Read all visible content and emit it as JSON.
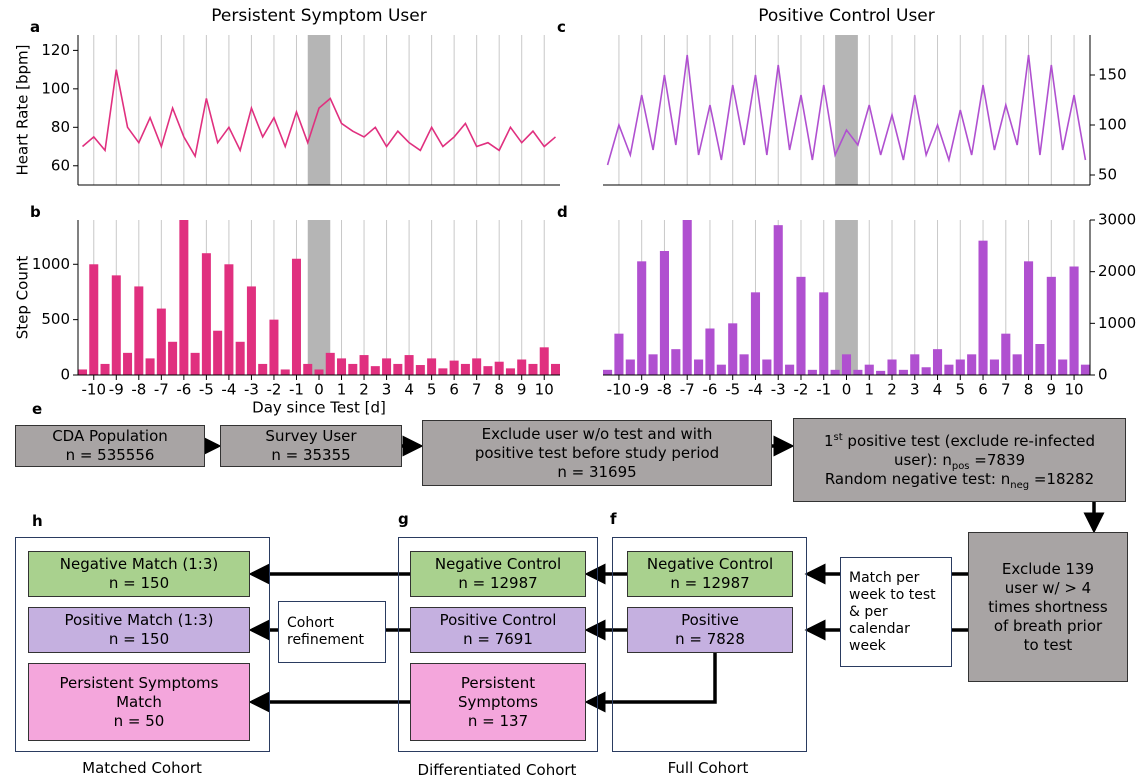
{
  "chart_data": [
    {
      "type": "line",
      "title": "Persistent Symptom User",
      "ylabel": "Heart Rate [bpm]",
      "y_side": "left",
      "show_xtick_labels": false,
      "x": [
        -10.5,
        -10,
        -9.5,
        -9,
        -8.5,
        -8,
        -7.5,
        -7,
        -6.5,
        -6,
        -5.5,
        -5,
        -4.5,
        -4,
        -3.5,
        -3,
        -2.5,
        -2,
        -1.5,
        -1,
        -0.5,
        0,
        0.5,
        1,
        1.5,
        2,
        2.5,
        3,
        3.5,
        4,
        4.5,
        5,
        5.5,
        6,
        6.5,
        7,
        7.5,
        8,
        8.5,
        9,
        9.5,
        10,
        10.5
      ],
      "series": [
        {
          "color": "#e0307f",
          "values": [
            70,
            75,
            68,
            110,
            80,
            72,
            85,
            70,
            90,
            75,
            65,
            95,
            72,
            80,
            68,
            90,
            75,
            85,
            70,
            88,
            72,
            90,
            95,
            82,
            78,
            75,
            80,
            70,
            78,
            72,
            68,
            80,
            70,
            75,
            82,
            70,
            72,
            68,
            80,
            72,
            78,
            70,
            75
          ]
        }
      ],
      "xlim": [
        -10.7,
        10.7
      ],
      "ylim": [
        50,
        128
      ],
      "xticks": [
        -10,
        -9,
        -8,
        -7,
        -6,
        -5,
        -4,
        -3,
        -2,
        -1,
        0,
        1,
        2,
        3,
        4,
        5,
        6,
        7,
        8,
        9,
        10
      ],
      "yticks": [
        60,
        80,
        100,
        120
      ],
      "highlight": [
        -0.5,
        0.5
      ]
    },
    {
      "type": "bar",
      "ylabel": "Step Count",
      "xlabel": "Day since Test [d]",
      "y_side": "left",
      "show_xtick_labels": true,
      "x": [
        -10.5,
        -10,
        -9.5,
        -9,
        -8.5,
        -8,
        -7.5,
        -7,
        -6.5,
        -6,
        -5.5,
        -5,
        -4.5,
        -4,
        -3.5,
        -3,
        -2.5,
        -2,
        -1.5,
        -1,
        -0.5,
        0,
        0.5,
        1,
        1.5,
        2,
        2.5,
        3,
        3.5,
        4,
        4.5,
        5,
        5.5,
        6,
        6.5,
        7,
        7.5,
        8,
        8.5,
        9,
        9.5,
        10,
        10.5
      ],
      "series": [
        {
          "color": "#e0307f",
          "values": [
            50,
            1000,
            100,
            900,
            200,
            800,
            150,
            600,
            300,
            1400,
            200,
            1100,
            400,
            1000,
            300,
            800,
            100,
            500,
            50,
            1050,
            100,
            50,
            200,
            150,
            100,
            180,
            80,
            150,
            100,
            180,
            90,
            150,
            60,
            130,
            100,
            150,
            80,
            120,
            60,
            140,
            100,
            250,
            100
          ]
        }
      ],
      "xlim": [
        -10.7,
        10.7
      ],
      "ylim": [
        0,
        1400
      ],
      "xticks": [
        -10,
        -9,
        -8,
        -7,
        -6,
        -5,
        -4,
        -3,
        -2,
        -1,
        0,
        1,
        2,
        3,
        4,
        5,
        6,
        7,
        8,
        9,
        10
      ],
      "yticks": [
        0,
        500,
        1000
      ],
      "highlight": [
        -0.5,
        0.5
      ]
    },
    {
      "type": "line",
      "title": "Positive Control User",
      "ylabel": "Heart Rate [bpm]",
      "y_side": "right",
      "show_xtick_labels": false,
      "x": [
        -10.5,
        -10,
        -9.5,
        -9,
        -8.5,
        -8,
        -7.5,
        -7,
        -6.5,
        -6,
        -5.5,
        -5,
        -4.5,
        -4,
        -3.5,
        -3,
        -2.5,
        -2,
        -1.5,
        -1,
        -0.5,
        0,
        0.5,
        1,
        1.5,
        2,
        2.5,
        3,
        3.5,
        4,
        4.5,
        5,
        5.5,
        6,
        6.5,
        7,
        7.5,
        8,
        8.5,
        9,
        9.5,
        10,
        10.5
      ],
      "series": [
        {
          "color": "#b050d0",
          "values": [
            60,
            100,
            70,
            130,
            75,
            150,
            80,
            170,
            70,
            120,
            65,
            140,
            80,
            150,
            70,
            160,
            75,
            130,
            65,
            140,
            70,
            95,
            80,
            120,
            70,
            110,
            65,
            130,
            70,
            100,
            65,
            115,
            70,
            140,
            75,
            120,
            80,
            170,
            70,
            160,
            75,
            130,
            65
          ]
        }
      ],
      "xlim": [
        -10.7,
        10.7
      ],
      "ylim": [
        40,
        190
      ],
      "xticks": [
        -10,
        -9,
        -8,
        -7,
        -6,
        -5,
        -4,
        -3,
        -2,
        -1,
        0,
        1,
        2,
        3,
        4,
        5,
        6,
        7,
        8,
        9,
        10
      ],
      "yticks": [
        50,
        100,
        150
      ],
      "highlight": [
        -0.5,
        0.5
      ]
    },
    {
      "type": "bar",
      "ylabel": "Step Count",
      "y_side": "right",
      "show_xtick_labels": true,
      "x": [
        -10.5,
        -10,
        -9.5,
        -9,
        -8.5,
        -8,
        -7.5,
        -7,
        -6.5,
        -6,
        -5.5,
        -5,
        -4.5,
        -4,
        -3.5,
        -3,
        -2.5,
        -2,
        -1.5,
        -1,
        -0.5,
        0,
        0.5,
        1,
        1.5,
        2,
        2.5,
        3,
        3.5,
        4,
        4.5,
        5,
        5.5,
        6,
        6.5,
        7,
        7.5,
        8,
        8.5,
        9,
        9.5,
        10,
        10.5
      ],
      "series": [
        {
          "color": "#b050d0",
          "values": [
            100,
            800,
            300,
            2200,
            400,
            2400,
            500,
            3000,
            300,
            900,
            200,
            1000,
            400,
            1600,
            300,
            2900,
            200,
            1900,
            100,
            1600,
            100,
            400,
            100,
            200,
            80,
            300,
            100,
            400,
            150,
            500,
            200,
            300,
            400,
            2600,
            300,
            800,
            400,
            2200,
            600,
            1900,
            300,
            2100,
            200
          ]
        }
      ],
      "xlim": [
        -10.7,
        10.7
      ],
      "ylim": [
        0,
        3000
      ],
      "xticks": [
        -10,
        -9,
        -8,
        -7,
        -6,
        -5,
        -4,
        -3,
        -2,
        -1,
        0,
        1,
        2,
        3,
        4,
        5,
        6,
        7,
        8,
        9,
        10
      ],
      "yticks": [
        0,
        1000,
        2000,
        3000
      ],
      "highlight": [
        -0.5,
        0.5
      ]
    }
  ],
  "panel_labels": [
    "a",
    "b",
    "c",
    "d",
    "e",
    "f",
    "g",
    "h"
  ],
  "flow": {
    "boxes": [
      {
        "lines": [
          [
            "CDA Population"
          ],
          [
            "n = 535556"
          ]
        ]
      },
      {
        "lines": [
          [
            "Survey User"
          ],
          [
            "n = 35355"
          ]
        ]
      },
      {
        "lines": [
          [
            "Exclude user w/o test and with"
          ],
          [
            "positive test before study period"
          ],
          [
            "n = 31695"
          ]
        ]
      },
      {
        "lines": [
          [
            "1",
            {
              "text": "st",
              "style": "sup"
            },
            " positive test (exclude re-infected"
          ],
          [
            "user): n",
            {
              "text": "pos",
              "style": "sub"
            },
            " =7839"
          ],
          [
            "Random negative test: n",
            {
              "text": "neg",
              "style": "sub"
            },
            " =18282"
          ]
        ]
      },
      {
        "lines": [
          [
            "Exclude 139"
          ],
          [
            "user w/ > 4"
          ],
          [
            "times shortness"
          ],
          [
            "of breath prior"
          ],
          [
            "to test"
          ]
        ]
      },
      {
        "lines": [
          [
            "Negative Control"
          ],
          [
            "n = 12987"
          ]
        ]
      },
      {
        "lines": [
          [
            "Positive"
          ],
          [
            "n = 7828"
          ]
        ]
      },
      {
        "lines": [
          [
            "Negative Control"
          ],
          [
            "n = 12987"
          ]
        ]
      },
      {
        "lines": [
          [
            "Positive Control"
          ],
          [
            "n = 7691"
          ]
        ]
      },
      {
        "lines": [
          [
            "Persistent"
          ],
          [
            "Symptoms"
          ],
          [
            "n = 137"
          ]
        ]
      },
      {
        "lines": [
          [
            "Negative Match (1:3)"
          ],
          [
            "n = 150"
          ]
        ]
      },
      {
        "lines": [
          [
            "Positive Match (1:3)"
          ],
          [
            "n = 150"
          ]
        ]
      },
      {
        "lines": [
          [
            "Persistent Symptoms"
          ],
          [
            "Match"
          ],
          [
            "n = 50"
          ]
        ]
      }
    ],
    "notes": [
      {
        "lines": [
          [
            "Cohort"
          ],
          [
            "refinement"
          ]
        ]
      },
      {
        "lines": [
          [
            "Match per"
          ],
          [
            "week to test"
          ],
          [
            "& per"
          ],
          [
            "calendar"
          ],
          [
            "week"
          ]
        ]
      }
    ],
    "captions": [
      "Full Cohort",
      "Differentiated Cohort",
      "Matched Cohort"
    ]
  }
}
